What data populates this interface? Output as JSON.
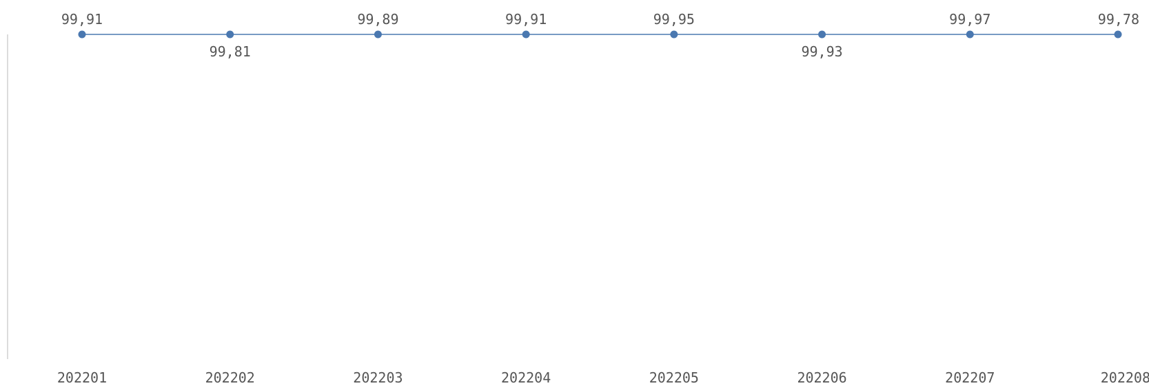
{
  "chart_data": {
    "type": "line",
    "title": "",
    "xlabel": "",
    "ylabel": "",
    "categories": [
      "202201",
      "202202",
      "202203",
      "202204",
      "202205",
      "202206",
      "202207",
      "202208"
    ],
    "series": [
      {
        "values": [
          99.91,
          99.81,
          99.89,
          99.91,
          99.95,
          99.93,
          99.97,
          99.78
        ],
        "value_labels": [
          "99,91",
          "99,81",
          "99,89",
          "99,91",
          "99,95",
          "99,93",
          "99,97",
          "99,78"
        ],
        "label_positions": [
          "above",
          "below",
          "above",
          "above",
          "above",
          "below",
          "above",
          "above"
        ]
      }
    ],
    "grid": false,
    "legend": "none",
    "y_axis_line": true,
    "colors": {
      "series": "#4a78b0",
      "axis": "#d0d0d0",
      "text": "#555555"
    }
  }
}
